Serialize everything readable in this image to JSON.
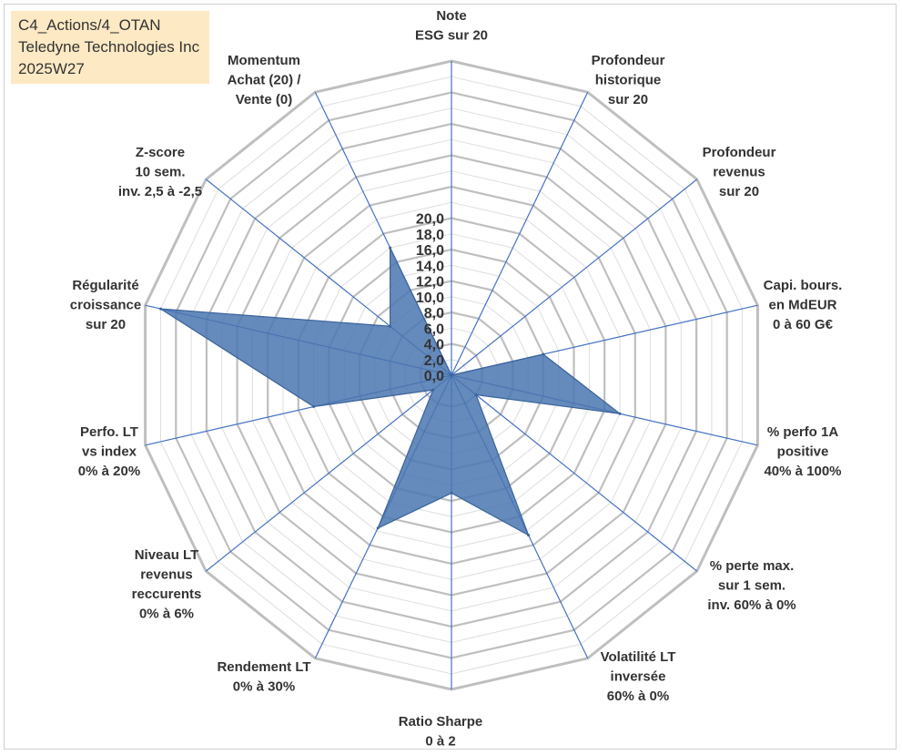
{
  "info_box": {
    "line1": "C4_Actions/4_OTAN",
    "line2": "Teledyne Technologies Inc",
    "line3": "2025W27"
  },
  "colors": {
    "grid": "#bfbfbf",
    "spoke": "#4472c4",
    "fill": "#4a76b0",
    "fill_stroke": "#3a639c"
  },
  "chart_data": {
    "type": "radar",
    "rmin": 0,
    "rmax": 20,
    "ticks": [
      "0,0",
      "2,0",
      "4,0",
      "6,0",
      "8,0",
      "10,0",
      "12,0",
      "14,0",
      "16,0",
      "18,0",
      "20,0"
    ],
    "grid": true,
    "categories": [
      [
        "Note",
        "ESG sur 20"
      ],
      [
        "Profondeur",
        "historique",
        "sur 20"
      ],
      [
        "Profondeur",
        "revenus",
        "sur 20"
      ],
      [
        "Capi. bours.",
        "en MdEUR",
        "0 à 60 G€"
      ],
      [
        "% perfo 1A",
        "positive",
        "40% à 100%"
      ],
      [
        "% perte max.",
        "sur 1 sem.",
        "inv. 60% à 0%"
      ],
      [
        "Volatilité LT",
        "inversée",
        "60% à 0%"
      ],
      [
        "Ratio Sharpe",
        "0 à 2"
      ],
      [
        "Rendement LT",
        "0% à 30%"
      ],
      [
        "Niveau LT",
        "revenus",
        "reccurents",
        "0% à 6%"
      ],
      [
        "Perfo. LT",
        "vs index",
        "0% à 20%"
      ],
      [
        "Régularité",
        "croissance",
        "sur 20"
      ],
      [
        "Z-score",
        "10 sem.",
        "inv. 2,5 à -2,5"
      ],
      [
        "Momentum",
        "Achat (20) /",
        "Vente (0)"
      ]
    ],
    "values": [
      0,
      0,
      0,
      6,
      11,
      2,
      11.3,
      7.5,
      10.8,
      1.5,
      9,
      19,
      5,
      9
    ]
  }
}
